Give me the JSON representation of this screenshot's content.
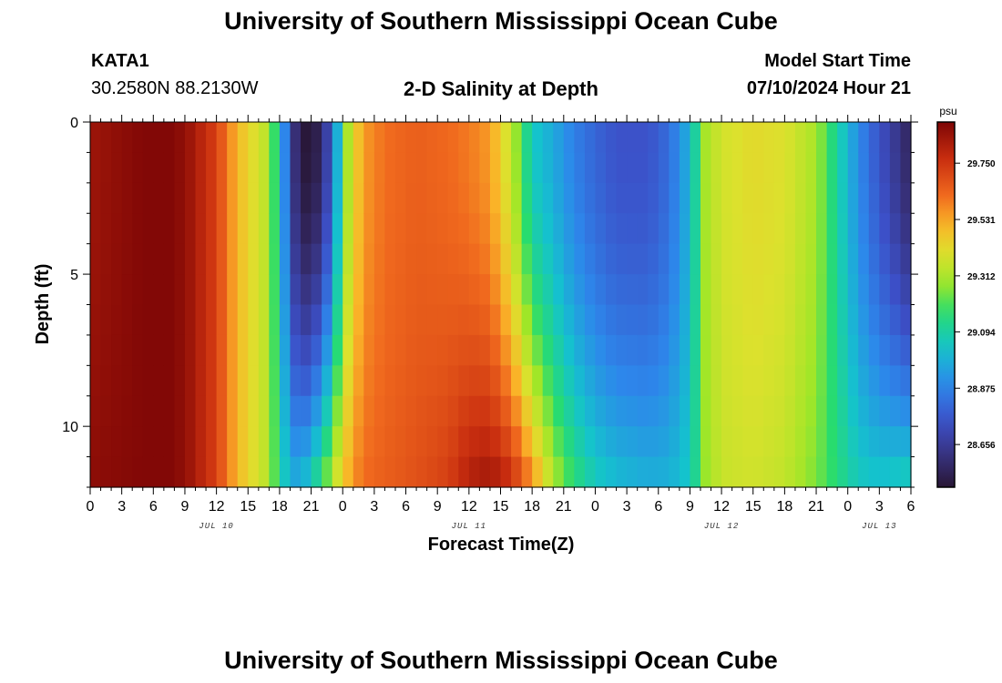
{
  "header": {
    "title": "University of Southern Mississippi Ocean Cube",
    "station_id": "KATA1",
    "station_coords": "30.2580N  88.2130W",
    "chart_title": "2-D Salinity at Depth",
    "model_start_label": "Model Start Time",
    "model_start_value": "07/10/2024 Hour 21"
  },
  "footer": {
    "title": "University of Southern Mississippi Ocean Cube"
  },
  "chart_data": {
    "type": "heatmap",
    "title": "2-D Salinity at Depth",
    "xlabel": "Forecast Time(Z)",
    "ylabel": "Depth (ft)",
    "colorbar_unit": "psu",
    "colorbar_ticks": [
      "29.750",
      "29.531",
      "29.312",
      "29.094",
      "28.875",
      "28.656"
    ],
    "colorbar_tick_values": [
      29.75,
      29.531,
      29.312,
      29.094,
      28.875,
      28.656
    ],
    "colorbar_range": [
      28.49,
      29.91
    ],
    "y_ticks": [
      "0",
      "5",
      "10"
    ],
    "y_tick_values": [
      0,
      5,
      10
    ],
    "ylim": [
      0,
      12
    ],
    "x_tick_labels": [
      "0",
      "3",
      "6",
      "9",
      "12",
      "15",
      "18",
      "21",
      "0",
      "3",
      "6",
      "9",
      "12",
      "15",
      "18",
      "21",
      "0",
      "3",
      "6",
      "9",
      "12",
      "15",
      "18",
      "21",
      "0",
      "3",
      "6"
    ],
    "date_labels": [
      {
        "label": "JUL 10",
        "hour_offset": 12
      },
      {
        "label": "JUL 11",
        "hour_offset": 36
      },
      {
        "label": "JUL 12",
        "hour_offset": 60
      },
      {
        "label": "JUL 13",
        "hour_offset": 75
      }
    ],
    "x_hours_total": 78,
    "depth_rows": [
      0,
      1,
      2,
      3,
      4,
      5,
      6,
      7,
      8,
      9,
      10,
      11
    ],
    "time_keyframes": [
      0,
      5,
      8,
      9.5,
      12,
      14,
      16.5,
      18,
      18.7,
      19.7,
      20.5,
      22,
      23.3,
      24,
      24.9,
      26,
      28,
      31,
      34,
      36,
      38,
      40,
      42,
      44,
      46,
      48,
      50,
      53,
      55,
      56.5,
      57.5,
      58.5,
      60,
      63,
      66,
      69,
      71,
      73,
      75,
      78
    ],
    "surface_keyframes": [
      29.85,
      29.9,
      29.9,
      29.85,
      29.72,
      29.5,
      29.35,
      29.1,
      28.8,
      28.55,
      28.5,
      28.55,
      28.9,
      29.2,
      29.4,
      29.55,
      29.62,
      29.65,
      29.63,
      29.6,
      29.55,
      29.35,
      29.05,
      28.97,
      28.87,
      28.8,
      28.75,
      28.75,
      28.82,
      28.95,
      29.1,
      29.3,
      29.38,
      29.42,
      29.4,
      29.3,
      29.1,
      28.9,
      28.75,
      28.55
    ],
    "bottom_keyframes": [
      29.88,
      29.9,
      29.9,
      29.85,
      29.72,
      29.5,
      29.35,
      29.15,
      29.0,
      28.95,
      29.0,
      29.15,
      29.35,
      29.45,
      29.55,
      29.62,
      29.65,
      29.68,
      29.72,
      29.8,
      29.83,
      29.75,
      29.55,
      29.3,
      29.15,
      29.05,
      29.0,
      28.97,
      28.98,
      29.03,
      29.12,
      29.28,
      29.36,
      29.38,
      29.35,
      29.25,
      29.15,
      29.05,
      29.02,
      29.05
    ]
  }
}
